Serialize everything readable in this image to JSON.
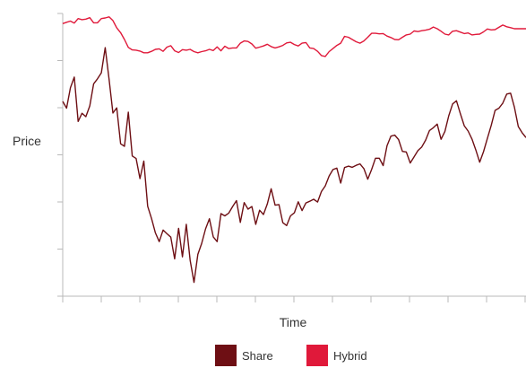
{
  "chart_data": {
    "type": "line",
    "title": "",
    "xlabel": "Time",
    "ylabel": "Price",
    "x_ticks": 13,
    "y_ticks": 6,
    "grid": false,
    "legend_position": "bottom",
    "x": [
      0,
      1,
      2,
      3,
      4,
      5,
      6,
      7,
      8,
      9,
      10,
      11,
      12,
      13,
      14,
      15,
      16,
      17,
      18,
      19,
      20,
      21,
      22,
      23,
      24,
      25,
      26,
      27,
      28,
      29,
      30,
      31,
      32,
      33,
      34,
      35,
      36,
      37,
      38,
      39,
      40,
      41,
      42,
      43,
      44,
      45,
      46,
      47,
      48,
      49,
      50,
      51,
      52,
      53,
      54,
      55,
      56,
      57,
      58,
      59,
      60,
      61,
      62,
      63,
      64,
      65,
      66,
      67,
      68,
      69,
      70,
      71,
      72,
      73,
      74,
      75,
      76,
      77,
      78,
      79,
      80,
      81,
      82,
      83,
      84,
      85,
      86,
      87,
      88,
      89,
      90,
      91,
      92,
      93,
      94,
      95,
      96,
      97,
      98,
      99,
      100,
      101,
      102,
      103,
      104,
      105,
      106,
      107,
      108,
      109,
      110,
      111,
      112,
      113,
      114,
      115,
      116,
      117,
      118,
      119,
      120
    ],
    "ylim": [
      0,
      100
    ],
    "series": [
      {
        "name": "Share",
        "color": "#6e0f14",
        "values": [
          68.9,
          66.5,
          73.7,
          77.5,
          61.8,
          64.7,
          63.5,
          67.3,
          75.1,
          76.9,
          79.0,
          87.9,
          76.8,
          64.8,
          66.6,
          53.9,
          53.0,
          65.1,
          49.6,
          48.7,
          41.6,
          47.8,
          31.8,
          27.5,
          22.4,
          19.3,
          23.4,
          22.1,
          20.9,
          13.2,
          24.0,
          13.9,
          25.4,
          12.7,
          4.9,
          14.8,
          18.7,
          23.8,
          27.4,
          21.0,
          19.3,
          29.2,
          28.4,
          29.4,
          31.7,
          33.8,
          26.1,
          33.1,
          30.8,
          31.7,
          25.4,
          30.4,
          28.9,
          32.6,
          38.0,
          32.2,
          32.4,
          26.0,
          25.0,
          28.4,
          29.5,
          33.4,
          30.3,
          33.0,
          33.6,
          34.3,
          33.3,
          37.0,
          39.0,
          42.5,
          44.8,
          45.3,
          40.0,
          45.5,
          46.0,
          45.6,
          46.3,
          46.8,
          45.1,
          41.4,
          44.8,
          48.8,
          48.8,
          46.2,
          53.2,
          56.6,
          57.0,
          55.4,
          51.2,
          51.0,
          47.1,
          49.3,
          51.5,
          52.8,
          55.2,
          58.6,
          59.6,
          60.9,
          55.5,
          58.3,
          63.8,
          68.0,
          69.1,
          64.5,
          60.3,
          58.4,
          55.6,
          51.7,
          47.4,
          51.1,
          55.8,
          60.4,
          65.7,
          66.5,
          68.3,
          71.5,
          71.8,
          66.8,
          60.0,
          57.8,
          56.1
        ]
      },
      {
        "name": "Hybrid",
        "color": "#e0193a",
        "values": [
          96.4,
          96.9,
          97.3,
          96.6,
          98.2,
          97.8,
          98.0,
          98.5,
          96.7,
          96.7,
          98.2,
          98.4,
          98.8,
          97.5,
          94.9,
          93.2,
          90.8,
          88.0,
          87.1,
          87.0,
          86.7,
          86.1,
          86.1,
          86.6,
          87.3,
          87.5,
          86.6,
          88.1,
          88.6,
          86.8,
          86.2,
          87.2,
          87.0,
          87.3,
          86.5,
          86.1,
          86.5,
          86.8,
          87.3,
          86.9,
          88.2,
          86.8,
          88.4,
          87.6,
          87.8,
          87.8,
          89.5,
          90.3,
          90.1,
          89.2,
          87.7,
          88.1,
          88.5,
          89.1,
          88.3,
          87.8,
          88.2,
          88.7,
          89.6,
          89.8,
          89.0,
          88.5,
          89.5,
          89.7,
          87.8,
          87.6,
          86.6,
          85.1,
          84.8,
          86.5,
          87.6,
          88.7,
          89.5,
          91.9,
          91.6,
          90.8,
          90.0,
          89.5,
          90.3,
          91.6,
          93.0,
          93.0,
          92.8,
          92.9,
          92.0,
          91.5,
          90.8,
          90.7,
          91.6,
          92.4,
          92.7,
          93.8,
          93.6,
          93.9,
          94.1,
          94.4,
          95.2,
          94.6,
          93.7,
          92.7,
          92.4,
          93.7,
          93.9,
          93.4,
          92.9,
          93.1,
          92.4,
          92.6,
          92.7,
          93.5,
          94.5,
          94.2,
          94.3,
          95.1,
          95.9,
          95.3,
          95.0,
          94.6,
          94.6,
          94.6,
          94.6
        ]
      }
    ]
  }
}
